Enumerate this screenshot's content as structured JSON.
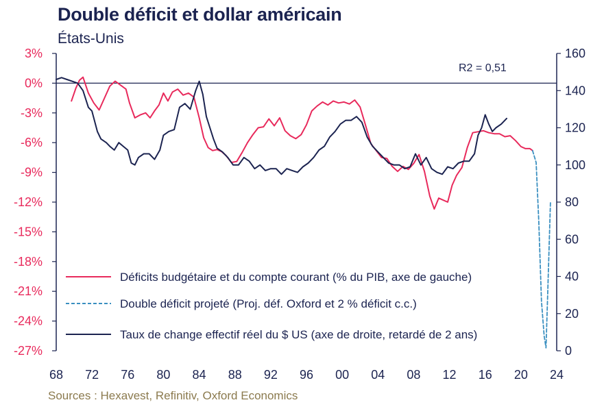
{
  "header": {
    "title": "Double déficit et dollar américain",
    "subtitle": "États-Unis"
  },
  "footer": {
    "source": "Sources : Hexavest, Refinitiv, Oxford Economics"
  },
  "chart_data": {
    "type": "line",
    "title": "Double déficit et dollar américain",
    "subtitle": "États-Unis",
    "annotation": "R2 = 0,51",
    "legend_position": "bottom-center inside plot",
    "grid": false,
    "x_axis": {
      "range": [
        1968,
        2024
      ],
      "tick_values": [
        1968,
        1972,
        1976,
        1980,
        1984,
        1988,
        1992,
        1996,
        2000,
        2004,
        2008,
        2012,
        2016,
        2020,
        2024
      ],
      "tick_labels": [
        "68",
        "72",
        "76",
        "80",
        "84",
        "88",
        "92",
        "96",
        "00",
        "04",
        "08",
        "12",
        "16",
        "20",
        "24"
      ]
    },
    "y_left": {
      "range": [
        -27,
        3
      ],
      "tick_values": [
        3,
        0,
        -3,
        -6,
        -9,
        -12,
        -15,
        -18,
        -21,
        -24,
        -27
      ],
      "tick_labels": [
        "3%",
        "0%",
        "-3%",
        "-6%",
        "-9%",
        "-12%",
        "-15%",
        "-18%",
        "-21%",
        "-24%",
        "-27%"
      ]
    },
    "y_right": {
      "range": [
        0,
        160
      ],
      "tick_values": [
        160,
        140,
        120,
        100,
        80,
        60,
        40,
        20,
        0
      ],
      "tick_labels": [
        "160",
        "140",
        "120",
        "100",
        "80",
        "60",
        "40",
        "20",
        "0"
      ]
    },
    "colors": {
      "deficit": "#e8295b",
      "projected": "#3a8fc0",
      "dollar": "#1b2350",
      "axis": "#1b2350"
    },
    "series": [
      {
        "name": "Déficits budgétaire et du compte courant (% du PIB, axe de gauche)",
        "axis": "left",
        "style": "solid",
        "x": [
          1969.7,
          1970.2,
          1970.6,
          1971.0,
          1971.6,
          1972.2,
          1972.8,
          1973.4,
          1974.0,
          1974.6,
          1975.2,
          1975.8,
          1976.2,
          1976.8,
          1977.4,
          1978.0,
          1978.5,
          1979.0,
          1979.5,
          1980.0,
          1980.5,
          1981.0,
          1981.6,
          1982.2,
          1982.8,
          1983.4,
          1984.0,
          1984.5,
          1985.0,
          1985.5,
          1986.0,
          1986.5,
          1987.0,
          1987.6,
          1988.2,
          1988.8,
          1989.4,
          1990.0,
          1990.6,
          1991.2,
          1991.8,
          1992.4,
          1993.0,
          1993.6,
          1994.2,
          1994.8,
          1995.4,
          1996.0,
          1996.6,
          1997.2,
          1997.8,
          1998.4,
          1999.0,
          1999.6,
          2000.2,
          2000.8,
          2001.4,
          2002.0,
          2002.6,
          2003.2,
          2003.8,
          2004.4,
          2005.0,
          2005.6,
          2006.2,
          2006.8,
          2007.4,
          2008.0,
          2008.6,
          2009.2,
          2009.8,
          2010.3,
          2010.8,
          2011.3,
          2011.8,
          2012.3,
          2012.8,
          2013.4,
          2014.0,
          2014.6,
          2015.2,
          2015.8,
          2016.4,
          2017.0,
          2017.6,
          2018.2,
          2018.8,
          2019.4,
          2020.0,
          2020.5,
          2021.0,
          2021.3
        ],
        "y": [
          -1.8,
          -0.5,
          0.3,
          0.6,
          -1.0,
          -2.0,
          -2.7,
          -1.5,
          -0.3,
          0.2,
          -0.2,
          -0.6,
          -2.0,
          -3.5,
          -3.2,
          -3.0,
          -3.5,
          -2.8,
          -2.2,
          -1.0,
          -1.8,
          -0.9,
          -0.6,
          -1.2,
          -1.0,
          -1.4,
          -3.5,
          -5.5,
          -6.5,
          -6.8,
          -6.7,
          -6.9,
          -7.3,
          -8.0,
          -7.9,
          -7.0,
          -6.0,
          -5.2,
          -4.5,
          -4.4,
          -3.6,
          -4.3,
          -3.5,
          -4.8,
          -5.3,
          -5.6,
          -5.2,
          -4.2,
          -2.8,
          -2.3,
          -1.9,
          -2.2,
          -1.8,
          -2.0,
          -1.9,
          -2.1,
          -1.7,
          -2.4,
          -4.2,
          -6.1,
          -6.8,
          -7.5,
          -7.6,
          -8.4,
          -8.9,
          -8.4,
          -8.7,
          -8.1,
          -7.2,
          -8.9,
          -11.4,
          -12.7,
          -11.6,
          -11.8,
          -12.0,
          -10.3,
          -9.3,
          -8.5,
          -6.5,
          -5.0,
          -4.9,
          -4.8,
          -5.0,
          -5.1,
          -5.1,
          -5.4,
          -5.3,
          -5.8,
          -6.4,
          -6.6,
          -6.6,
          -6.8
        ]
      },
      {
        "name": "Double déficit projeté (Proj. déf. Oxford et 2 % déficit c.c.)",
        "axis": "left",
        "style": "dashed",
        "x": [
          2021.3,
          2021.7,
          2022.0,
          2022.3,
          2022.6,
          2022.8,
          2023.0,
          2023.3
        ],
        "y": [
          -6.8,
          -8.0,
          -14.0,
          -22.0,
          -25.5,
          -26.7,
          -21.0,
          -12.0
        ]
      },
      {
        "name": "Taux de change effectif réel du $ US (axe de droite, retardé de 2 ans)",
        "axis": "right",
        "style": "solid",
        "x": [
          1968.0,
          1968.6,
          1969.2,
          1969.8,
          1970.4,
          1971.0,
          1971.6,
          1972.0,
          1972.6,
          1973.0,
          1973.6,
          1974.0,
          1974.5,
          1975.0,
          1975.5,
          1976.0,
          1976.4,
          1976.8,
          1977.2,
          1977.8,
          1978.4,
          1979.0,
          1979.6,
          1980.0,
          1980.6,
          1981.2,
          1981.8,
          1982.4,
          1983.0,
          1983.6,
          1984.0,
          1984.4,
          1984.8,
          1985.2,
          1985.6,
          1986.0,
          1986.6,
          1987.2,
          1987.8,
          1988.4,
          1989.0,
          1989.6,
          1990.2,
          1990.8,
          1991.4,
          1992.0,
          1992.6,
          1993.2,
          1993.8,
          1994.4,
          1995.0,
          1995.6,
          1996.2,
          1996.8,
          1997.4,
          1998.0,
          1998.6,
          1999.2,
          1999.8,
          2000.4,
          2001.0,
          2001.6,
          2002.2,
          2002.8,
          2003.4,
          2004.0,
          2004.6,
          2005.2,
          2005.8,
          2006.4,
          2007.0,
          2007.6,
          2008.2,
          2008.8,
          2009.4,
          2010.0,
          2010.6,
          2011.2,
          2011.8,
          2012.4,
          2013.0,
          2013.6,
          2014.2,
          2014.8,
          2015.2,
          2015.6,
          2016.0,
          2016.4,
          2016.8,
          2017.2,
          2017.8,
          2018.4
        ],
        "y": [
          146,
          147,
          146,
          145,
          144,
          140,
          131,
          129,
          118,
          114,
          112,
          110,
          108,
          112,
          110,
          108,
          101,
          100,
          104,
          106,
          106,
          103,
          108,
          116,
          118,
          119,
          131,
          133,
          130,
          140,
          145,
          138,
          126,
          120,
          114,
          109,
          107,
          104,
          100,
          100,
          104,
          102,
          98,
          100,
          97,
          98,
          98,
          95,
          98,
          97,
          96,
          99,
          101,
          104,
          108,
          110,
          115,
          118,
          122,
          124,
          124,
          126,
          123,
          115,
          110,
          107,
          104,
          101,
          100,
          100,
          98,
          99,
          106,
          100,
          104,
          98,
          96,
          95,
          99,
          98,
          101,
          102,
          102,
          106,
          116,
          120,
          127,
          122,
          118,
          120,
          122,
          125
        ]
      }
    ]
  }
}
